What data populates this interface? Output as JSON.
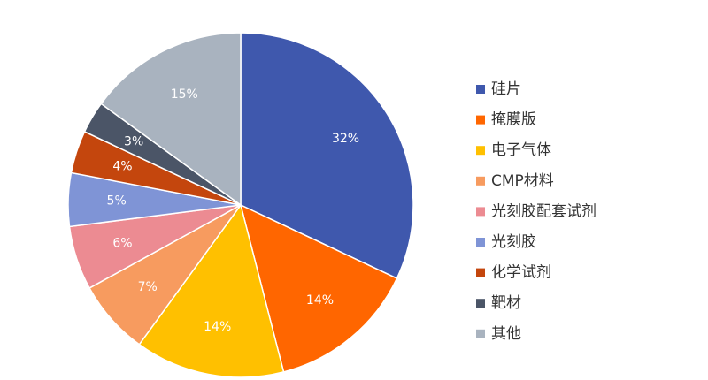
{
  "chart_data": {
    "type": "pie",
    "categories": [
      "硅片",
      "掩膜版",
      "电子气体",
      "CMP材料",
      "光刻胶配套试剂",
      "光刻胶",
      "化学试剂",
      "靶材",
      "其他"
    ],
    "values": [
      32,
      14,
      14,
      7,
      6,
      5,
      4,
      3,
      15
    ],
    "value_labels": [
      "32%",
      "14%",
      "14%",
      "7%",
      "6%",
      "5%",
      "4%",
      "3%",
      "15%"
    ],
    "colors": [
      "#3f58ad",
      "#ff6600",
      "#ffc000",
      "#f79b5f",
      "#ec8b92",
      "#7f94d6",
      "#c4460d",
      "#4b5567",
      "#a9b3bf"
    ],
    "legend": "right"
  }
}
